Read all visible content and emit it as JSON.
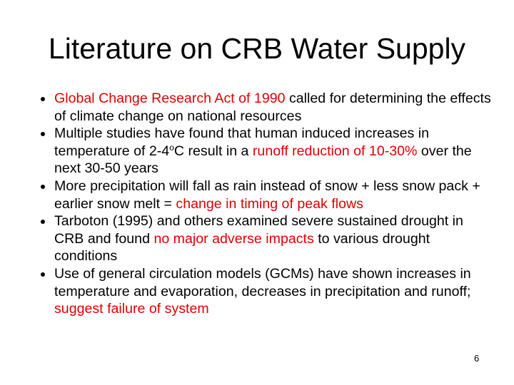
{
  "title": "Literature on CRB Water Supply",
  "highlight_color": "#e00000",
  "bullets": [
    [
      {
        "text": "Global Change Research Act of 1990",
        "highlight": true
      },
      {
        "text": " called for determining the effects of climate change on national resources"
      }
    ],
    [
      {
        "text": "Multiple studies have found that human induced increases in temperature of 2-4"
      },
      {
        "text": "o",
        "sup": true
      },
      {
        "text": "C result in a "
      },
      {
        "text": "runoff reduction of 10-30%",
        "highlight": true
      },
      {
        "text": " over the next 30-50 years"
      }
    ],
    [
      {
        "text": "More precipitation will fall as rain instead of snow + less snow pack + earlier snow melt = "
      },
      {
        "text": "change in timing of peak flows",
        "highlight": true
      }
    ],
    [
      {
        "text": "Tarboton (1995) and others examined severe sustained drought in CRB and found "
      },
      {
        "text": "no major adverse impacts",
        "highlight": true
      },
      {
        "text": " to various drought conditions"
      }
    ],
    [
      {
        "text": "Use of general circulation models (GCMs) have shown increases in temperature and evaporation, decreases in precipitation and runoff; "
      },
      {
        "text": "suggest failure of system",
        "highlight": true
      }
    ]
  ],
  "page_number": "6"
}
